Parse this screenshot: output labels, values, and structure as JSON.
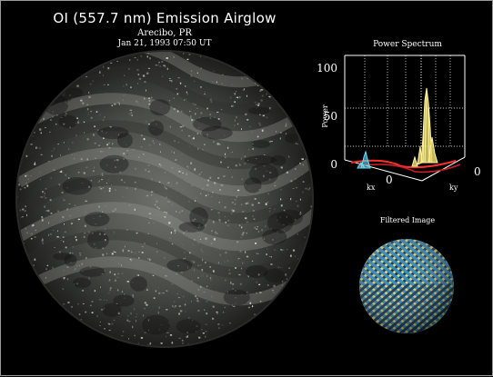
{
  "title": "OI (557.7 nm) Emission Airglow",
  "location": "Arecibo, PR",
  "datetime": "Jan 21, 1993  07:50 UT",
  "power_spectrum": {
    "title": "Power Spectrum",
    "z_axis_label": "Power",
    "z_ticks": [
      "100",
      "50",
      "0"
    ],
    "kx_label": "kx",
    "ky_label": "ky",
    "kx_tick": "0",
    "ky_tick": "0",
    "peak_colors": [
      "#fff6a0",
      "#66e0ff",
      "#ff3030"
    ]
  },
  "filtered": {
    "title": "Filtered Image",
    "colors": [
      "#2d86b8",
      "#e8dd7a",
      "#0c2f4a"
    ]
  }
}
